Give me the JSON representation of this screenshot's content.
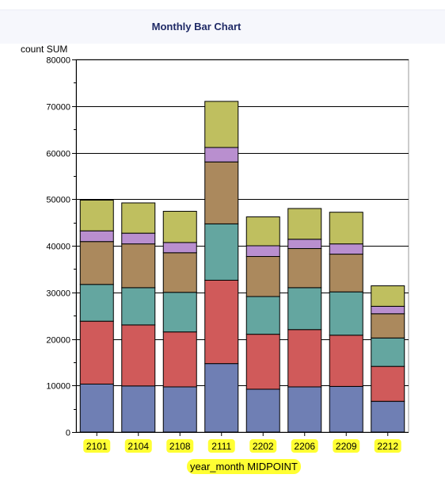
{
  "chart_data": {
    "type": "bar",
    "stacked": true,
    "title": "Monthly Bar Chart",
    "ylabel": "count SUM",
    "xlabel": "year_month MIDPOINT",
    "ylim": [
      0,
      80000
    ],
    "yticks": [
      "0",
      "10000",
      "20000",
      "30000",
      "40000",
      "50000",
      "60000",
      "70000",
      "80000"
    ],
    "grid": true,
    "categories": [
      "2101",
      "2104",
      "2108",
      "2111",
      "2202",
      "2206",
      "2209",
      "2212"
    ],
    "series": [
      {
        "color": "#6f7fb4",
        "values": [
          10300,
          9900,
          9700,
          14700,
          9200,
          9700,
          9800,
          6600
        ]
      },
      {
        "color": "#d05a5a",
        "values": [
          13500,
          13100,
          11800,
          17900,
          11800,
          12300,
          11000,
          7500
        ]
      },
      {
        "color": "#64a6a0",
        "values": [
          7900,
          8000,
          8500,
          12100,
          8100,
          9000,
          9300,
          6100
        ]
      },
      {
        "color": "#ab895d",
        "values": [
          9200,
          9400,
          8500,
          13300,
          8600,
          8400,
          8100,
          5200
        ]
      },
      {
        "color": "#b98fcf",
        "values": [
          2300,
          2300,
          2200,
          3100,
          2300,
          2000,
          2200,
          1600
        ]
      },
      {
        "color": "#bfbf5f",
        "values": [
          6600,
          6500,
          6700,
          9900,
          6200,
          6600,
          6800,
          4400
        ]
      }
    ]
  },
  "colors": {
    "title": "#1f2a66",
    "highlight": "#ffff33"
  }
}
